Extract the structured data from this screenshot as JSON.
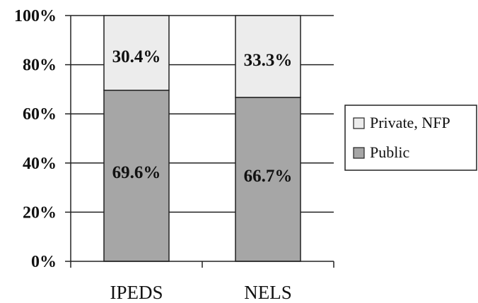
{
  "chart_data": {
    "type": "bar",
    "stacked": true,
    "categories": [
      "IPEDS",
      "NELS"
    ],
    "series": [
      {
        "name": "Public",
        "values": [
          69.6,
          66.7
        ],
        "labels": [
          "69.6%",
          "66.7%"
        ],
        "color": "#a6a6a6"
      },
      {
        "name": "Private, NFP",
        "values": [
          30.4,
          33.3
        ],
        "labels": [
          "30.4%",
          "33.3%"
        ],
        "color": "#ececec"
      }
    ],
    "y_ticks": [
      "0%",
      "20%",
      "40%",
      "60%",
      "80%",
      "100%"
    ],
    "ylim": [
      0,
      100
    ],
    "grid": true,
    "legend": [
      "Private, NFP",
      "Public"
    ],
    "legend_position": "right"
  }
}
